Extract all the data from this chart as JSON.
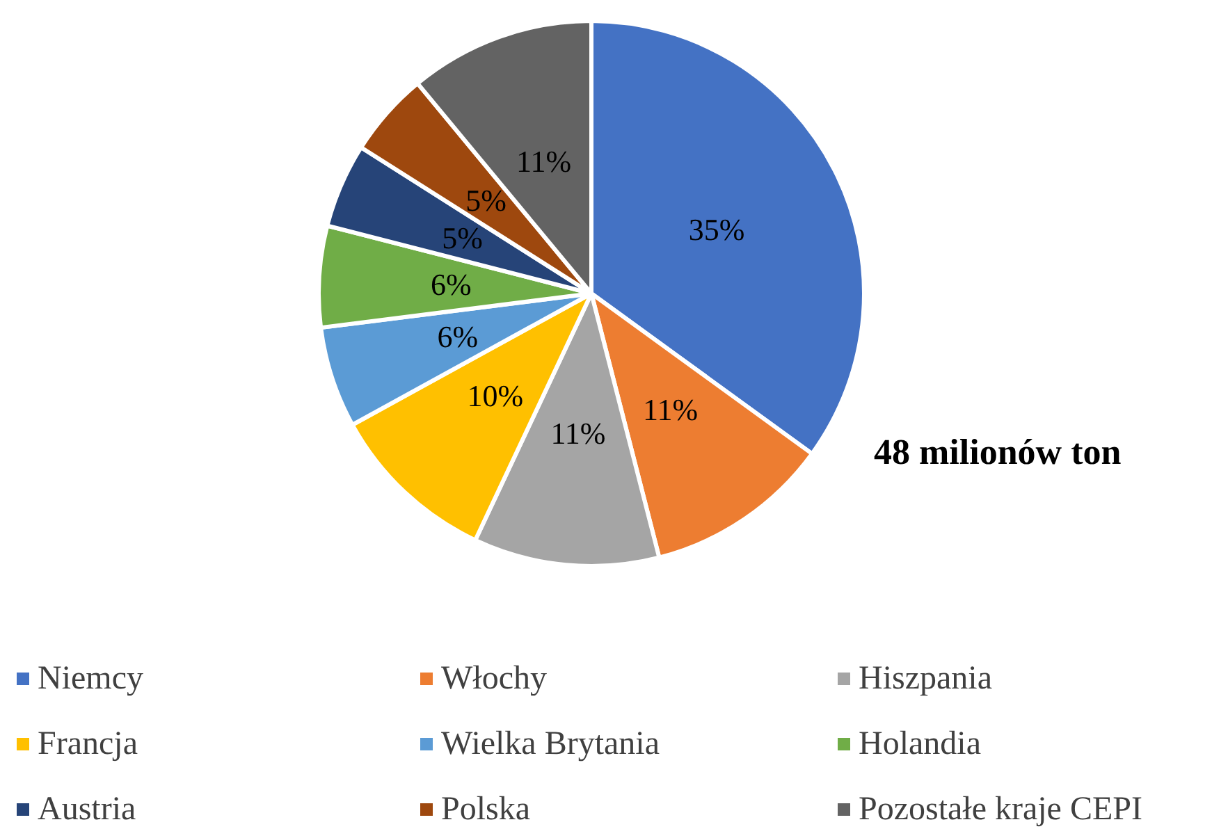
{
  "chart_data": {
    "type": "pie",
    "categories": [
      "Niemcy",
      "Włochy",
      "Hiszpania",
      "Francja",
      "Wielka Brytania",
      "Holandia",
      "Austria",
      "Polska",
      "Pozostałe kraje CEPI"
    ],
    "values": [
      35,
      11,
      11,
      10,
      6,
      6,
      5,
      5,
      11
    ],
    "value_labels": [
      "35%",
      "11%",
      "11%",
      "10%",
      "6%",
      "6%",
      "5%",
      "5%",
      "11%"
    ],
    "colors": [
      "#4472c4",
      "#ed7d31",
      "#a5a5a5",
      "#ffc000",
      "#5b9bd5",
      "#70ad47",
      "#264478",
      "#9e480e",
      "#636363"
    ],
    "annotations": [
      "48 milionów ton"
    ],
    "legend": "bottom"
  }
}
